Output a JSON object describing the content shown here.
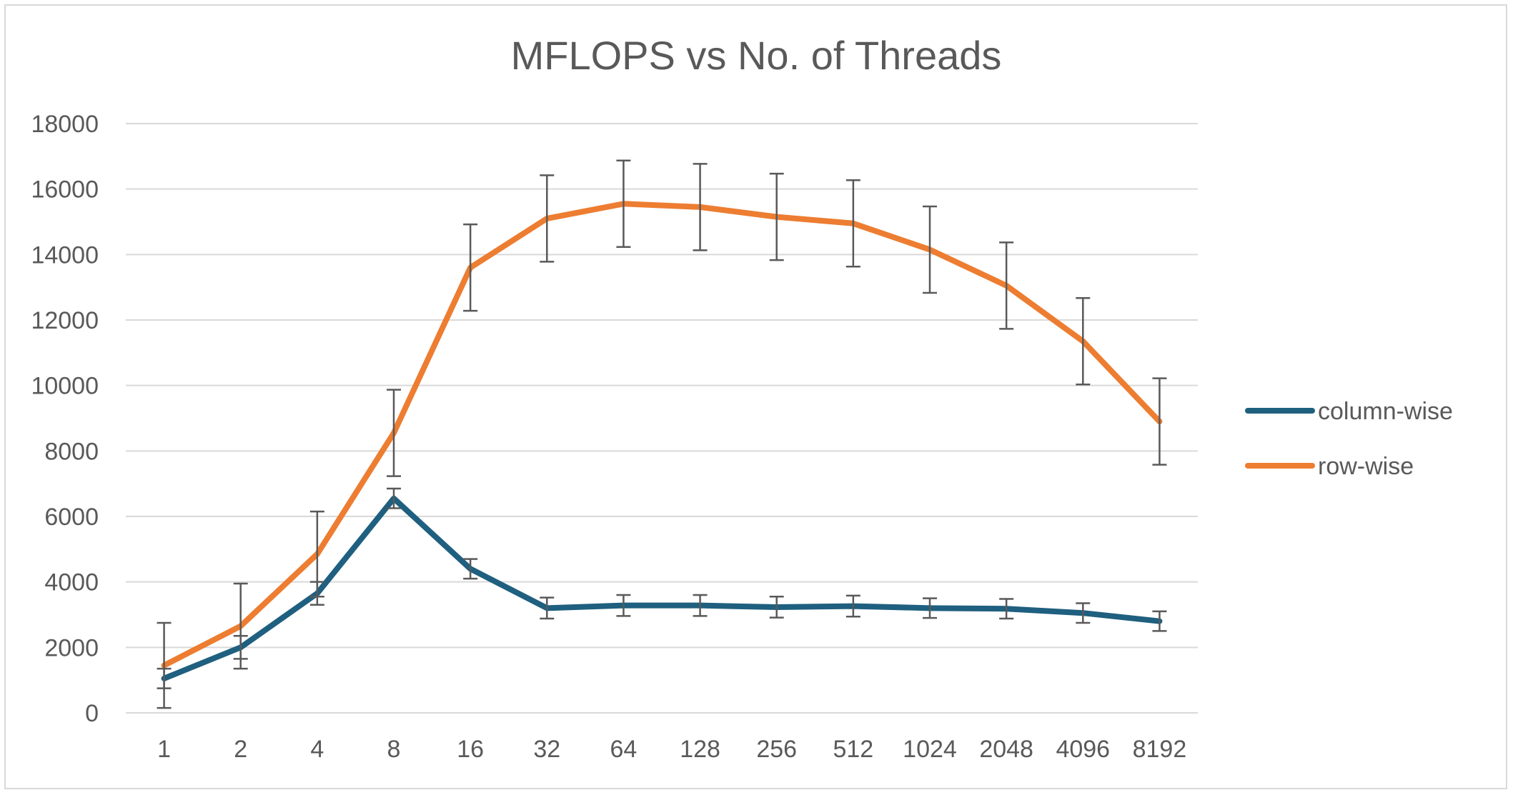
{
  "chart_data": {
    "type": "line",
    "title": "MFLOPS vs No. of Threads",
    "xlabel": "",
    "ylabel": "",
    "categories": [
      "1",
      "2",
      "4",
      "8",
      "16",
      "32",
      "64",
      "128",
      "256",
      "512",
      "1024",
      "2048",
      "4096",
      "8192"
    ],
    "ylim": [
      0,
      18000
    ],
    "yticks": [
      0,
      2000,
      4000,
      6000,
      8000,
      10000,
      12000,
      14000,
      16000,
      18000
    ],
    "grid": true,
    "legend_position": "right",
    "series": [
      {
        "name": "column-wise",
        "color": "#1f5f7f",
        "values": [
          1050,
          2000,
          3650,
          6550,
          4400,
          3200,
          3280,
          3280,
          3230,
          3260,
          3200,
          3180,
          3050,
          2800
        ],
        "error": [
          300,
          350,
          350,
          300,
          300,
          320,
          320,
          320,
          320,
          320,
          300,
          300,
          300,
          300
        ]
      },
      {
        "name": "row-wise",
        "color": "#ed7d31",
        "values": [
          1450,
          2650,
          4850,
          8550,
          13600,
          15100,
          15550,
          15450,
          15150,
          14950,
          14150,
          13050,
          11350,
          8900
        ],
        "error": [
          1300,
          1300,
          1300,
          1320,
          1320,
          1320,
          1320,
          1320,
          1320,
          1320,
          1320,
          1320,
          1320,
          1320
        ]
      }
    ]
  }
}
